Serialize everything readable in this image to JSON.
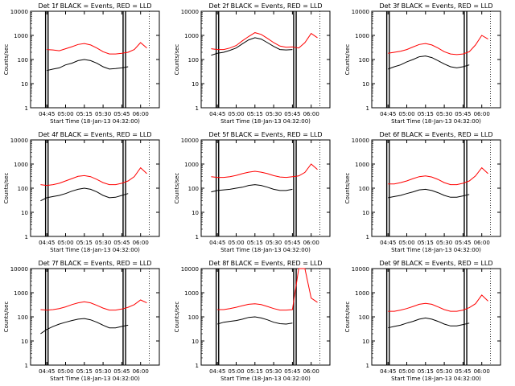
{
  "figure": {
    "xlabel": "Start Time (18-Jan-13 04:32:00)",
    "ylabel": "Counts/sec",
    "xticks": [
      "04:45",
      "05:00",
      "05:15",
      "05:30",
      "05:45",
      "06:00"
    ],
    "yticks": [
      "1",
      "10",
      "100",
      "1000",
      "10000"
    ],
    "colors": {
      "events": "#000000",
      "lld": "#ff0000",
      "axes": "#000000"
    }
  },
  "chart_data": [
    {
      "type": "line",
      "title": "Det 1f BLACK = Events, RED = LLD",
      "xlabel": "Start Time (18-Jan-13 04:32:00)",
      "ylabel": "Counts/sec",
      "yscale": "log",
      "ylim": [
        1,
        10000
      ],
      "x": [
        "04:40",
        "04:45",
        "04:50",
        "04:55",
        "05:00",
        "05:05",
        "05:10",
        "05:15",
        "05:20",
        "05:25",
        "05:30",
        "05:35",
        "05:40",
        "05:45",
        "05:50",
        "05:55",
        "06:00",
        "06:05"
      ],
      "series": [
        {
          "name": "Events",
          "color": "#000000",
          "values": [
            null,
            35,
            40,
            45,
            60,
            70,
            90,
            100,
            90,
            70,
            50,
            40,
            42,
            45,
            50,
            null,
            null,
            null
          ]
        },
        {
          "name": "LLD",
          "color": "#ff0000",
          "values": [
            null,
            260,
            250,
            230,
            280,
            340,
            420,
            460,
            400,
            300,
            210,
            170,
            170,
            180,
            200,
            260,
            500,
            300
          ]
        }
      ],
      "vlines": [
        "04:44",
        "04:46",
        "05:46",
        "05:48"
      ]
    },
    {
      "type": "line",
      "title": "Det 2f BLACK = Events, RED = LLD",
      "xlabel": "Start Time (18-Jan-13 04:32:00)",
      "ylabel": "Counts/sec",
      "yscale": "log",
      "ylim": [
        1,
        10000
      ],
      "x": [
        "04:40",
        "04:45",
        "04:50",
        "04:55",
        "05:00",
        "05:05",
        "05:10",
        "05:15",
        "05:20",
        "05:25",
        "05:30",
        "05:35",
        "05:40",
        "05:45",
        "05:50",
        "05:55",
        "06:00",
        "06:05"
      ],
      "series": [
        {
          "name": "Events",
          "color": "#000000",
          "values": [
            150,
            180,
            200,
            240,
            300,
            450,
            650,
            800,
            700,
            500,
            350,
            260,
            250,
            260,
            null,
            null,
            null,
            null
          ]
        },
        {
          "name": "LLD",
          "color": "#ff0000",
          "values": [
            280,
            260,
            260,
            300,
            380,
            600,
            900,
            1300,
            1100,
            750,
            500,
            360,
            320,
            330,
            300,
            500,
            1200,
            800
          ]
        }
      ],
      "vlines": [
        "04:44",
        "04:46",
        "05:46",
        "05:48"
      ]
    },
    {
      "type": "line",
      "title": "Det 3f BLACK = Events, RED = LLD",
      "xlabel": "Start Time (18-Jan-13 04:32:00)",
      "ylabel": "Counts/sec",
      "yscale": "log",
      "ylim": [
        1,
        10000
      ],
      "x": [
        "04:40",
        "04:45",
        "04:50",
        "04:55",
        "05:00",
        "05:05",
        "05:10",
        "05:15",
        "05:20",
        "05:25",
        "05:30",
        "05:35",
        "05:40",
        "05:45",
        "05:50",
        "05:55",
        "06:00",
        "06:05"
      ],
      "series": [
        {
          "name": "Events",
          "color": "#000000",
          "values": [
            null,
            40,
            50,
            60,
            80,
            100,
            130,
            140,
            120,
            90,
            65,
            50,
            45,
            50,
            60,
            null,
            null,
            null
          ]
        },
        {
          "name": "LLD",
          "color": "#ff0000",
          "values": [
            null,
            180,
            200,
            220,
            260,
            330,
            420,
            460,
            400,
            300,
            210,
            170,
            160,
            170,
            210,
            400,
            1000,
            700
          ]
        }
      ],
      "vlines": [
        "04:44",
        "04:46",
        "05:46",
        "05:48"
      ]
    },
    {
      "type": "line",
      "title": "Det 4f BLACK = Events, RED = LLD",
      "xlabel": "Start Time (18-Jan-13 04:32:00)",
      "ylabel": "Counts/sec",
      "yscale": "log",
      "ylim": [
        1,
        10000
      ],
      "x": [
        "04:40",
        "04:45",
        "04:50",
        "04:55",
        "05:00",
        "05:05",
        "05:10",
        "05:15",
        "05:20",
        "05:25",
        "05:30",
        "05:35",
        "05:40",
        "05:45",
        "05:50",
        "05:55",
        "06:00",
        "06:05"
      ],
      "series": [
        {
          "name": "Events",
          "color": "#000000",
          "values": [
            30,
            40,
            45,
            50,
            60,
            75,
            90,
            100,
            90,
            70,
            50,
            40,
            42,
            50,
            60,
            null,
            null,
            null
          ]
        },
        {
          "name": "LLD",
          "color": "#ff0000",
          "values": [
            140,
            130,
            140,
            160,
            200,
            250,
            310,
            330,
            300,
            230,
            170,
            140,
            140,
            160,
            200,
            300,
            700,
            400
          ]
        }
      ],
      "vlines": [
        "04:44",
        "04:46",
        "05:46",
        "05:48"
      ]
    },
    {
      "type": "line",
      "title": "Det 5f BLACK = Events, RED = LLD",
      "xlabel": "Start Time (18-Jan-13 04:32:00)",
      "ylabel": "Counts/sec",
      "yscale": "log",
      "ylim": [
        1,
        10000
      ],
      "x": [
        "04:40",
        "04:45",
        "04:50",
        "04:55",
        "05:00",
        "05:05",
        "05:10",
        "05:15",
        "05:20",
        "05:25",
        "05:30",
        "05:35",
        "05:40",
        "05:45",
        "05:50",
        "05:55",
        "06:00",
        "06:05"
      ],
      "series": [
        {
          "name": "Events",
          "color": "#000000",
          "values": [
            70,
            80,
            85,
            90,
            100,
            110,
            130,
            140,
            130,
            110,
            90,
            80,
            80,
            90,
            null,
            null,
            null,
            null
          ]
        },
        {
          "name": "LLD",
          "color": "#ff0000",
          "values": [
            300,
            280,
            280,
            300,
            340,
            400,
            460,
            500,
            460,
            400,
            330,
            290,
            280,
            300,
            320,
            450,
            1000,
            600
          ]
        }
      ],
      "vlines": [
        "04:44",
        "04:46",
        "05:46",
        "05:48"
      ]
    },
    {
      "type": "line",
      "title": "Det 6f BLACK = Events, RED = LLD",
      "xlabel": "Start Time (18-Jan-13 04:32:00)",
      "ylabel": "Counts/sec",
      "yscale": "log",
      "ylim": [
        1,
        10000
      ],
      "x": [
        "04:40",
        "04:45",
        "04:50",
        "04:55",
        "05:00",
        "05:05",
        "05:10",
        "05:15",
        "05:20",
        "05:25",
        "05:30",
        "05:35",
        "05:40",
        "05:45",
        "05:50",
        "05:55",
        "06:00",
        "06:05"
      ],
      "series": [
        {
          "name": "Events",
          "color": "#000000",
          "values": [
            null,
            40,
            45,
            50,
            60,
            70,
            85,
            90,
            80,
            65,
            50,
            42,
            42,
            48,
            55,
            null,
            null,
            null
          ]
        },
        {
          "name": "LLD",
          "color": "#ff0000",
          "values": [
            null,
            150,
            150,
            170,
            200,
            250,
            300,
            320,
            290,
            230,
            170,
            140,
            140,
            160,
            200,
            320,
            700,
            400
          ]
        }
      ],
      "vlines": [
        "04:44",
        "04:46",
        "05:46",
        "05:48"
      ]
    },
    {
      "type": "line",
      "title": "Det 7f BLACK = Events, RED = LLD",
      "xlabel": "Start Time (18-Jan-13 04:32:00)",
      "ylabel": "Counts/sec",
      "yscale": "log",
      "ylim": [
        1,
        10000
      ],
      "x": [
        "04:40",
        "04:45",
        "04:50",
        "04:55",
        "05:00",
        "05:05",
        "05:10",
        "05:15",
        "05:20",
        "05:25",
        "05:30",
        "05:35",
        "05:40",
        "05:45",
        "05:50",
        "05:55",
        "06:00",
        "06:05"
      ],
      "series": [
        {
          "name": "Events",
          "color": "#000000",
          "values": [
            20,
            30,
            40,
            50,
            60,
            70,
            80,
            85,
            75,
            60,
            45,
            35,
            35,
            40,
            45,
            null,
            null,
            null
          ]
        },
        {
          "name": "LLD",
          "color": "#ff0000",
          "values": [
            200,
            190,
            200,
            220,
            260,
            320,
            380,
            420,
            380,
            300,
            230,
            190,
            190,
            210,
            250,
            320,
            500,
            380
          ]
        }
      ],
      "vlines": [
        "04:44",
        "04:46",
        "05:46",
        "05:48"
      ]
    },
    {
      "type": "line",
      "title": "Det 8f BLACK = Events, RED = LLD",
      "xlabel": "Start Time (18-Jan-13 04:32:00)",
      "ylabel": "Counts/sec",
      "yscale": "log",
      "ylim": [
        1,
        10000
      ],
      "x": [
        "04:40",
        "04:45",
        "04:50",
        "04:55",
        "05:00",
        "05:05",
        "05:10",
        "05:15",
        "05:20",
        "05:25",
        "05:30",
        "05:35",
        "05:40",
        "05:45",
        "05:50",
        "05:55",
        "06:00",
        "06:05"
      ],
      "series": [
        {
          "name": "Events",
          "color": "#000000",
          "values": [
            null,
            50,
            60,
            65,
            70,
            80,
            95,
            100,
            90,
            75,
            60,
            52,
            50,
            55,
            null,
            null,
            null,
            null
          ]
        },
        {
          "name": "LLD",
          "color": "#ff0000",
          "values": [
            null,
            200,
            200,
            220,
            250,
            290,
            330,
            350,
            320,
            270,
            220,
            190,
            190,
            200,
            10000,
            10000,
            600,
            400
          ]
        }
      ],
      "vlines": [
        "04:44",
        "04:46",
        "05:46",
        "05:48"
      ]
    },
    {
      "type": "line",
      "title": "Det 9f BLACK = Events, RED = LLD",
      "xlabel": "Start Time (18-Jan-13 04:32:00)",
      "ylabel": "Counts/sec",
      "yscale": "log",
      "ylim": [
        1,
        10000
      ],
      "x": [
        "04:40",
        "04:45",
        "04:50",
        "04:55",
        "05:00",
        "05:05",
        "05:10",
        "05:15",
        "05:20",
        "05:25",
        "05:30",
        "05:35",
        "05:40",
        "05:45",
        "05:50",
        "05:55",
        "06:00",
        "06:05"
      ],
      "series": [
        {
          "name": "Events",
          "color": "#000000",
          "values": [
            null,
            35,
            40,
            45,
            55,
            65,
            80,
            90,
            80,
            65,
            50,
            42,
            42,
            48,
            55,
            null,
            null,
            null
          ]
        },
        {
          "name": "LLD",
          "color": "#ff0000",
          "values": [
            null,
            170,
            170,
            190,
            220,
            270,
            330,
            360,
            330,
            260,
            200,
            170,
            170,
            190,
            240,
            350,
            800,
            450
          ]
        }
      ],
      "vlines": [
        "04:44",
        "04:46",
        "05:46",
        "05:48"
      ]
    }
  ]
}
